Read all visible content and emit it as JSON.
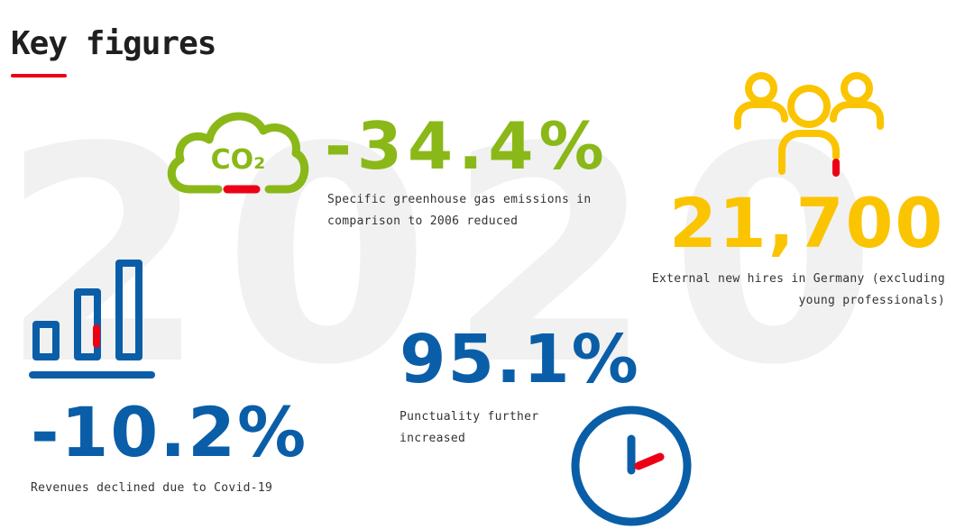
{
  "header": {
    "title": "Key figures"
  },
  "background": {
    "year": "2020"
  },
  "colors": {
    "green": "#8ab818",
    "yellow": "#fbc400",
    "blue": "#0a5ea8",
    "red": "#ec0016"
  },
  "figures": [
    {
      "icon": "co2-cloud-icon",
      "value": "-34.4%",
      "lines": [
        "Specific greenhouse gas emissions in",
        "comparison to 2006 reduced"
      ]
    },
    {
      "icon": "people-group-icon",
      "value": "21,700",
      "lines": [
        "External new hires in Germany (excluding",
        "young professionals)"
      ]
    },
    {
      "icon": "bar-chart-icon",
      "value": "-10.2%",
      "lines": [
        "Revenues declined due to Covid-19"
      ]
    },
    {
      "icon": "clock-icon",
      "value": "95.1%",
      "lines": [
        "Punctuality further",
        "increased"
      ]
    }
  ],
  "icons": {
    "co2_label": "CO₂"
  }
}
